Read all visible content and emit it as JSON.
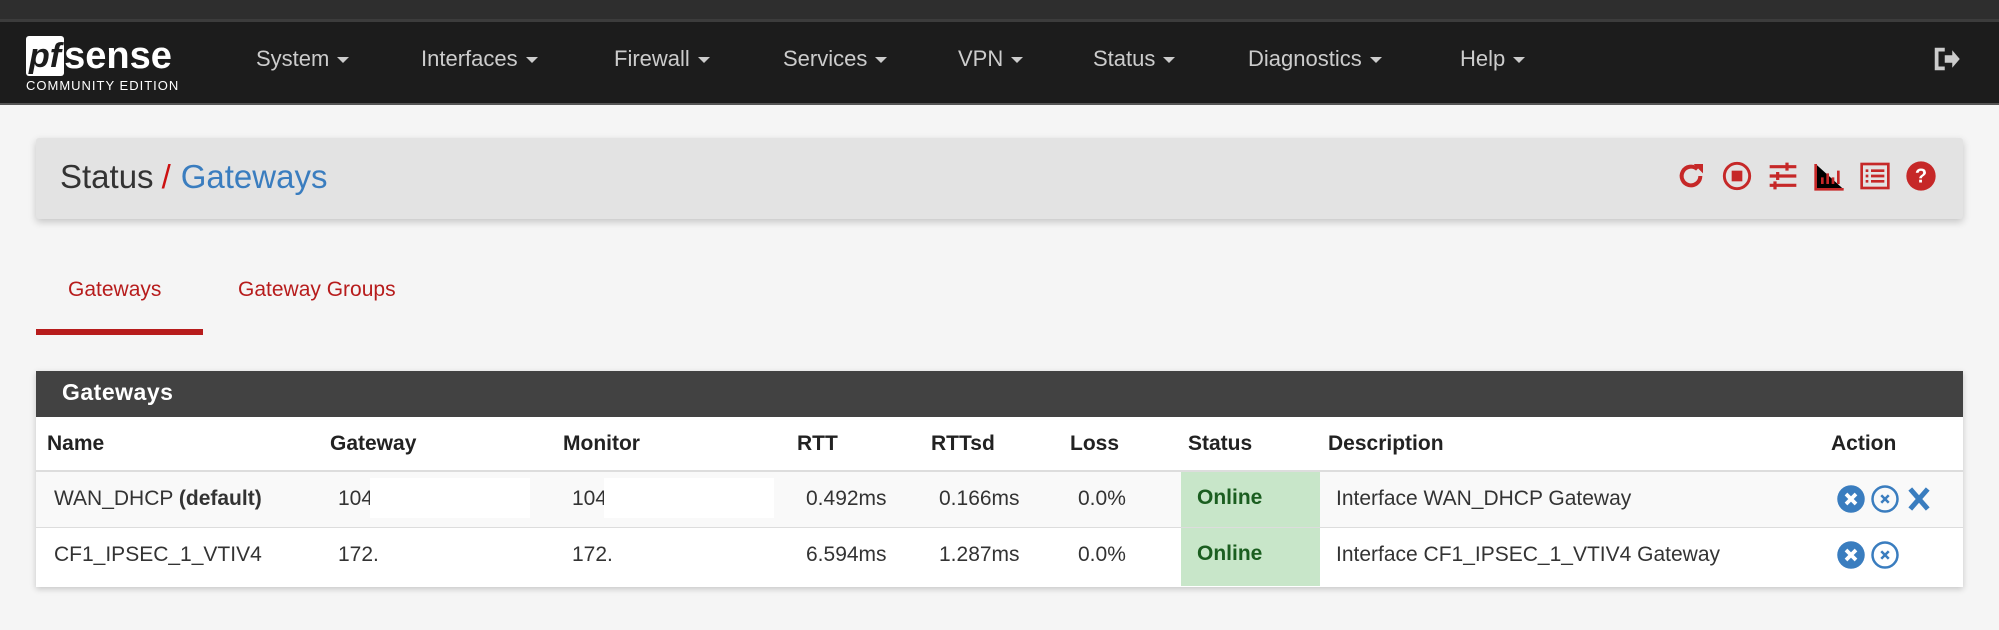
{
  "brand": {
    "logo_pf": "pf",
    "logo_sense": "sense",
    "edition": "COMMUNITY EDITION"
  },
  "nav": [
    "System",
    "Interfaces",
    "Firewall",
    "Services",
    "VPN",
    "Status",
    "Diagnostics",
    "Help"
  ],
  "breadcrumb": {
    "parent": "Status",
    "separator": "/",
    "current": "Gateways"
  },
  "toolbar_icons": [
    "refresh-icon",
    "stop-circle-icon",
    "sliders-icon",
    "bar-chart-icon",
    "list-icon",
    "help-icon"
  ],
  "tabs": [
    {
      "label": "Gateways",
      "active": true
    },
    {
      "label": "Gateway Groups",
      "active": false
    }
  ],
  "panel": {
    "title": "Gateways",
    "columns": [
      "Name",
      "Gateway",
      "Monitor",
      "RTT",
      "RTTsd",
      "Loss",
      "Status",
      "Description",
      "Action"
    ],
    "rows": [
      {
        "name": "WAN_DHCP",
        "tag": "(default)",
        "gateway": "104.",
        "monitor": "104.",
        "rtt": "0.492ms",
        "rttsd": "0.166ms",
        "loss": "0.0%",
        "status": "Online",
        "description": "Interface WAN_DHCP Gateway",
        "actions": [
          "remove-circle-icon",
          "close-circle-icon",
          "x-icon"
        ]
      },
      {
        "name": "CF1_IPSEC_1_VTIV4",
        "tag": "",
        "gateway": "172.",
        "monitor": "172.",
        "rtt": "6.594ms",
        "rttsd": "1.287ms",
        "loss": "0.0%",
        "status": "Online",
        "description": "Interface CF1_IPSEC_1_VTIV4 Gateway",
        "actions": [
          "remove-circle-icon",
          "close-circle-icon"
        ]
      }
    ]
  },
  "colors": {
    "accent": "#b71c1c",
    "link": "#3a7dbf",
    "online_bg": "#c8e6c9",
    "online_text": "#1b5e20",
    "action": "#3a7dbf"
  }
}
